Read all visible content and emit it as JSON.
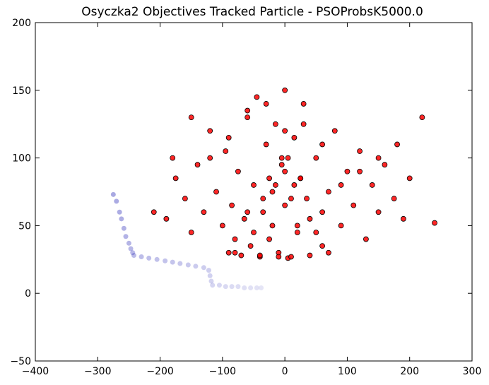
{
  "chart_data": {
    "type": "scatter",
    "title": "Osyczka2 Objectives Tracked Particle - PSOProbsK5000.0",
    "xlabel": "",
    "ylabel": "",
    "xlim": [
      -400,
      300
    ],
    "ylim": [
      -50,
      200
    ],
    "xticks": [
      -400,
      -300,
      -200,
      -100,
      0,
      100,
      200,
      300
    ],
    "yticks": [
      -50,
      0,
      50,
      100,
      150,
      200
    ],
    "xtick_labels": [
      "−400",
      "−300",
      "−200",
      "−100",
      "0",
      "100",
      "200",
      "300"
    ],
    "ytick_labels": [
      "−50",
      "0",
      "50",
      "100",
      "150",
      "200"
    ],
    "grid": false,
    "legend": "none",
    "colors": {
      "swarm": "#ff0000",
      "swarm_edge": "#000000",
      "tracked": "#3333bb"
    },
    "series": [
      {
        "role": "swarm",
        "x": [
          -210,
          -190,
          -175,
          -160,
          -150,
          -140,
          -130,
          -120,
          -110,
          -100,
          -95,
          -90,
          -85,
          -80,
          -75,
          -70,
          -65,
          -60,
          -55,
          -50,
          -45,
          -40,
          -35,
          -30,
          -25,
          -20,
          -15,
          -10,
          -5,
          0,
          5,
          10,
          15,
          20,
          25,
          30,
          40,
          50,
          60,
          70,
          80,
          90,
          100,
          110,
          120,
          130,
          140,
          150,
          160,
          175,
          190,
          200,
          220,
          240,
          -180,
          -150,
          -120,
          -90,
          -60,
          -30,
          0,
          30,
          60,
          90,
          120,
          150,
          180,
          -80,
          -40,
          -10,
          10,
          40,
          70,
          -50,
          -20,
          20,
          50,
          -60,
          0,
          60,
          -35,
          35,
          -15,
          15,
          0,
          -5,
          5,
          -25,
          25
        ],
        "y": [
          60,
          55,
          85,
          70,
          45,
          95,
          60,
          120,
          75,
          50,
          105,
          30,
          65,
          40,
          90,
          28,
          55,
          130,
          35,
          80,
          145,
          27,
          60,
          110,
          40,
          75,
          125,
          30,
          95,
          150,
          26,
          70,
          115,
          45,
          85,
          140,
          55,
          100,
          35,
          75,
          120,
          50,
          90,
          65,
          105,
          40,
          80,
          60,
          95,
          70,
          55,
          85,
          130,
          52,
          100,
          130,
          100,
          115,
          135,
          140,
          120,
          125,
          110,
          80,
          90,
          100,
          110,
          30,
          28,
          27,
          27,
          28,
          30,
          45,
          50,
          50,
          45,
          60,
          65,
          60,
          70,
          70,
          80,
          80,
          90,
          100,
          100,
          85,
          85
        ]
      },
      {
        "role": "tracked",
        "x": [
          -275,
          -270,
          -265,
          -262,
          -258,
          -255,
          -250,
          -247,
          -244,
          -242,
          -230,
          -218,
          -205,
          -192,
          -180,
          -168,
          -155,
          -143,
          -130,
          -122,
          -120,
          -118,
          -116,
          -105,
          -95,
          -85,
          -75,
          -65,
          -55,
          -45,
          -38
        ],
        "y": [
          73,
          68,
          60,
          55,
          48,
          42,
          37,
          33,
          30,
          28,
          27,
          26,
          25,
          24,
          23,
          22,
          21,
          20,
          19,
          17,
          13,
          9,
          6,
          6,
          5,
          5,
          5,
          4,
          4,
          4,
          4
        ]
      }
    ]
  }
}
